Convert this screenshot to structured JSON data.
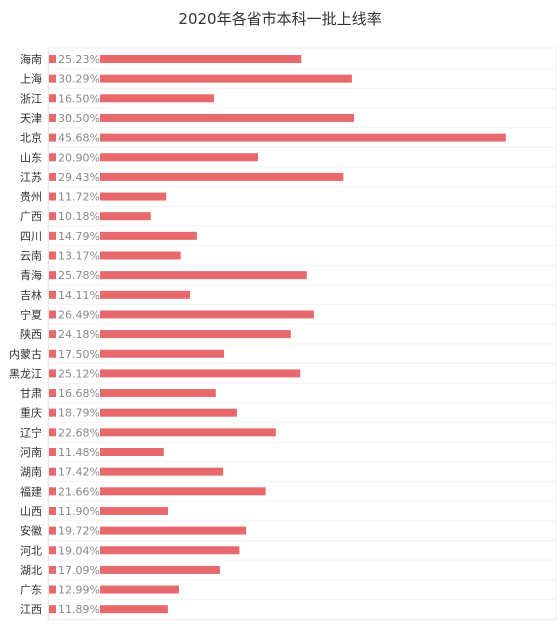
{
  "chart_data": {
    "type": "bar",
    "orientation": "horizontal",
    "title": "2020年各省市本科一批上线率",
    "xlabel": "",
    "ylabel": "",
    "grid": false,
    "legend": "none",
    "bar_color": "#e8696b",
    "xlim": [
      0,
      50
    ],
    "categories": [
      "海南",
      "上海",
      "浙江",
      "天津",
      "北京",
      "山东",
      "江苏",
      "贵州",
      "广西",
      "四川",
      "云南",
      "青海",
      "吉林",
      "宁夏",
      "陕西",
      "内蒙古",
      "黑龙江",
      "甘肃",
      "重庆",
      "辽宁",
      "河南",
      "湖南",
      "福建",
      "山西",
      "安徽",
      "河北",
      "湖北",
      "广东",
      "江西"
    ],
    "values": [
      25.23,
      30.29,
      16.5,
      30.5,
      45.68,
      20.9,
      29.43,
      11.72,
      10.18,
      14.79,
      13.17,
      25.78,
      14.11,
      26.49,
      24.18,
      17.5,
      25.12,
      16.68,
      18.79,
      22.68,
      11.48,
      17.42,
      21.66,
      11.9,
      19.72,
      19.04,
      17.09,
      12.99,
      11.89
    ],
    "value_labels": [
      "25.23%",
      "30.29%",
      "16.50%",
      "30.50%",
      "45.68%",
      "20.90%",
      "29.43%",
      "11.72%",
      "10.18%",
      "14.79%",
      "13.17%",
      "25.78%",
      "14.11%",
      "26.49%",
      "24.18%",
      "17.50%",
      "25.12%",
      "16.68%",
      "18.79%",
      "22.68%",
      "11.48%",
      "17.42%",
      "21.66%",
      "11.90%",
      "19.72%",
      "19.04%",
      "17.09%",
      "12.99%",
      "11.89%"
    ]
  }
}
